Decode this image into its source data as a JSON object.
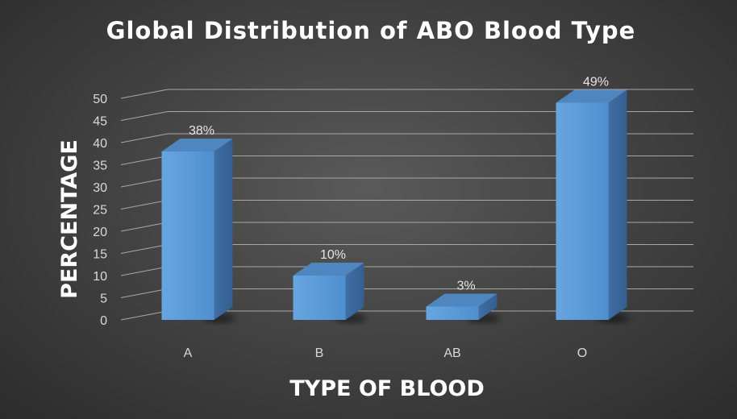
{
  "chart_data": {
    "type": "bar",
    "title": "Global Distribution of ABO Blood Type",
    "xlabel": "TYPE OF BLOOD",
    "ylabel": "PERCENTAGE",
    "categories": [
      "A",
      "B",
      "AB",
      "O"
    ],
    "values": [
      38,
      10,
      3,
      49
    ],
    "data_labels": [
      "38%",
      "10%",
      "3%",
      "49%"
    ],
    "yticks": [
      "0",
      "5",
      "10",
      "15",
      "20",
      "25",
      "30",
      "35",
      "40",
      "45",
      "50"
    ],
    "ylim": [
      0,
      50
    ],
    "grid": true,
    "style": "3d-column"
  },
  "colors": {
    "bar_front": "#5b9bd5",
    "bar_top": "#4f86c0",
    "bar_side": "#3e6fa6",
    "gridline": "#a8a8a8",
    "background": "#444444"
  }
}
